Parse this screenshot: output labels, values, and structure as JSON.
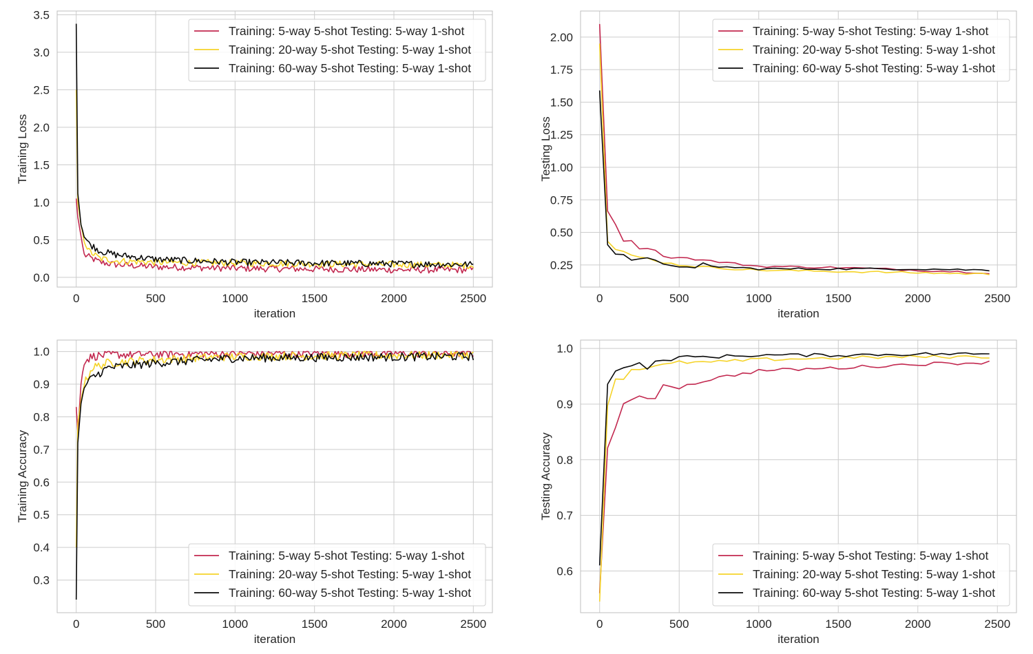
{
  "colors": {
    "series_0": "#c2284f",
    "series_1": "#f5d328",
    "series_2": "#0a0a0a",
    "grid": "#cccccc",
    "frame": "#bfbfbf"
  },
  "chart_data": [
    {
      "type": "line",
      "title": "",
      "xlabel": "iteration",
      "ylabel": "Training Loss",
      "xlim": [
        -120,
        2620
      ],
      "ylim": [
        -0.13,
        3.55
      ],
      "xticks": [
        0,
        500,
        1000,
        1500,
        2000,
        2500
      ],
      "yticks": [
        0.0,
        0.5,
        1.0,
        1.5,
        2.0,
        2.5,
        3.0,
        3.5
      ],
      "grid": true,
      "legend": "upper-right",
      "noise": 0.045,
      "step": 10,
      "series": [
        {
          "name": "Training: 5-way 5-shot Testing: 5-way 1-shot",
          "color": "#c2284f",
          "x": [
            0,
            10,
            30,
            50,
            80,
            150,
            250,
            500,
            1000,
            1500,
            2000,
            2500
          ],
          "y": [
            1.05,
            0.8,
            0.55,
            0.3,
            0.27,
            0.2,
            0.17,
            0.14,
            0.12,
            0.11,
            0.1,
            0.1
          ]
        },
        {
          "name": "Training: 20-way 5-shot Testing: 5-way 1-shot",
          "color": "#f5d328",
          "x": [
            0,
            10,
            30,
            50,
            80,
            150,
            250,
            500,
            1000,
            1500,
            2000,
            2500
          ],
          "y": [
            2.5,
            1.0,
            0.7,
            0.5,
            0.35,
            0.25,
            0.22,
            0.2,
            0.19,
            0.18,
            0.17,
            0.16
          ]
        },
        {
          "name": "Training: 60-way 5-shot Testing: 5-way 1-shot",
          "color": "#0a0a0a",
          "x": [
            0,
            10,
            30,
            50,
            80,
            150,
            250,
            500,
            1000,
            1500,
            2000,
            2500
          ],
          "y": [
            3.38,
            1.12,
            0.7,
            0.55,
            0.45,
            0.35,
            0.3,
            0.24,
            0.2,
            0.19,
            0.18,
            0.17
          ]
        }
      ]
    },
    {
      "type": "line",
      "title": "",
      "xlabel": "iteration",
      "ylabel": "Testing Loss",
      "xlim": [
        -120,
        2620
      ],
      "ylim": [
        0.08,
        2.2
      ],
      "xticks": [
        0,
        500,
        1000,
        1500,
        2000,
        2500
      ],
      "yticks": [
        0.25,
        0.5,
        0.75,
        1.0,
        1.25,
        1.5,
        1.75,
        2.0
      ],
      "ytick_format": 2,
      "grid": true,
      "legend": "upper-right",
      "noise": 0.008,
      "step": 50,
      "series": [
        {
          "name": "Training: 5-way 5-shot Testing: 5-way 1-shot",
          "color": "#c2284f",
          "x": [
            0,
            50,
            100,
            150,
            200,
            250,
            300,
            350,
            400,
            500,
            700,
            1000,
            1500,
            2000,
            2450
          ],
          "y": [
            2.1,
            0.67,
            0.56,
            0.44,
            0.43,
            0.38,
            0.38,
            0.37,
            0.31,
            0.31,
            0.28,
            0.24,
            0.23,
            0.21,
            0.19
          ]
        },
        {
          "name": "Training: 20-way 5-shot Testing: 5-way 1-shot",
          "color": "#f5d328",
          "x": [
            0,
            50,
            100,
            150,
            200,
            300,
            400,
            500,
            700,
            1000,
            1500,
            2000,
            2450
          ],
          "y": [
            1.95,
            0.43,
            0.37,
            0.35,
            0.32,
            0.3,
            0.27,
            0.25,
            0.23,
            0.21,
            0.2,
            0.19,
            0.18
          ]
        },
        {
          "name": "Training: 60-way 5-shot Testing: 5-way 1-shot",
          "color": "#0a0a0a",
          "x": [
            0,
            50,
            100,
            150,
            200,
            250,
            300,
            350,
            400,
            500,
            600,
            650,
            700,
            1000,
            1500,
            2000,
            2450
          ],
          "y": [
            1.59,
            0.41,
            0.34,
            0.33,
            0.29,
            0.29,
            0.3,
            0.28,
            0.26,
            0.24,
            0.22,
            0.26,
            0.24,
            0.22,
            0.22,
            0.22,
            0.21
          ]
        }
      ]
    },
    {
      "type": "line",
      "title": "",
      "xlabel": "iteration",
      "ylabel": "Training Accuracy",
      "xlim": [
        -120,
        2620
      ],
      "ylim": [
        0.2,
        1.035
      ],
      "xticks": [
        0,
        500,
        1000,
        1500,
        2000,
        2500
      ],
      "yticks": [
        0.3,
        0.4,
        0.5,
        0.6,
        0.7,
        0.8,
        0.9,
        1.0
      ],
      "grid": true,
      "legend": "lower-right",
      "noise": 0.013,
      "step": 10,
      "series": [
        {
          "name": "Training: 5-way 5-shot Testing: 5-way 1-shot",
          "color": "#c2284f",
          "x": [
            0,
            10,
            30,
            50,
            100,
            200,
            500,
            1000,
            2500
          ],
          "y": [
            0.83,
            0.75,
            0.9,
            0.97,
            0.985,
            0.99,
            0.992,
            0.994,
            0.995
          ]
        },
        {
          "name": "Training: 20-way 5-shot Testing: 5-way 1-shot",
          "color": "#f5d328",
          "x": [
            0,
            10,
            30,
            50,
            100,
            200,
            500,
            1000,
            2500
          ],
          "y": [
            0.4,
            0.78,
            0.85,
            0.9,
            0.95,
            0.965,
            0.975,
            0.985,
            0.99
          ]
        },
        {
          "name": "Training: 60-way 5-shot Testing: 5-way 1-shot",
          "color": "#0a0a0a",
          "x": [
            0,
            10,
            30,
            50,
            100,
            200,
            500,
            1000,
            2500
          ],
          "y": [
            0.24,
            0.72,
            0.84,
            0.89,
            0.92,
            0.95,
            0.965,
            0.98,
            0.985
          ]
        }
      ]
    },
    {
      "type": "line",
      "title": "",
      "xlabel": "iteration",
      "ylabel": "Testing Accuracy",
      "xlim": [
        -120,
        2620
      ],
      "ylim": [
        0.525,
        1.015
      ],
      "xticks": [
        0,
        500,
        1000,
        1500,
        2000,
        2500
      ],
      "yticks": [
        0.6,
        0.7,
        0.8,
        0.9,
        1.0
      ],
      "grid": true,
      "legend": "lower-right",
      "noise": 0.003,
      "step": 50,
      "series": [
        {
          "name": "Training: 5-way 5-shot Testing: 5-way 1-shot",
          "color": "#c2284f",
          "x": [
            0,
            50,
            100,
            150,
            200,
            250,
            300,
            350,
            400,
            500,
            700,
            1000,
            1500,
            2000,
            2450
          ],
          "y": [
            0.56,
            0.82,
            0.86,
            0.9,
            0.905,
            0.912,
            0.91,
            0.912,
            0.935,
            0.93,
            0.945,
            0.96,
            0.965,
            0.972,
            0.975
          ]
        },
        {
          "name": "Training: 20-way 5-shot Testing: 5-way 1-shot",
          "color": "#f5d328",
          "x": [
            0,
            50,
            100,
            150,
            200,
            300,
            400,
            500,
            700,
            1000,
            1500,
            2000,
            2450
          ],
          "y": [
            0.545,
            0.9,
            0.945,
            0.945,
            0.963,
            0.965,
            0.97,
            0.975,
            0.975,
            0.98,
            0.983,
            0.985,
            0.985
          ]
        },
        {
          "name": "Training: 60-way 5-shot Testing: 5-way 1-shot",
          "color": "#0a0a0a",
          "x": [
            0,
            50,
            100,
            150,
            200,
            250,
            300,
            350,
            400,
            500,
            700,
            1000,
            1500,
            2000,
            2450
          ],
          "y": [
            0.61,
            0.937,
            0.958,
            0.968,
            0.969,
            0.972,
            0.965,
            0.975,
            0.978,
            0.984,
            0.985,
            0.988,
            0.988,
            0.99,
            0.99
          ]
        }
      ]
    }
  ]
}
